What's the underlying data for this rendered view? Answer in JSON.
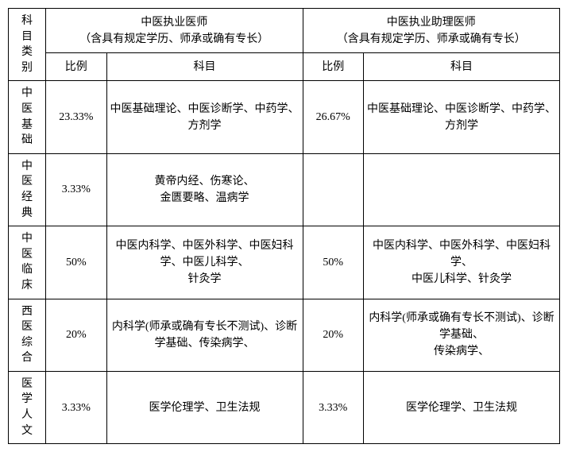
{
  "header": {
    "category_label": "科目类别",
    "group1_title": "中医执业医师\n（含具有规定学历、师承或确有专长）",
    "group2_title": "中医执业助理医师\n（含具有规定学历、师承或确有专长）",
    "ratio_label": "比例",
    "subject_label": "科目"
  },
  "rows": [
    {
      "category": "中医基础",
      "g1_ratio": "23.33%",
      "g1_subject": "中医基础理论、中医诊断学、中药学、方剂学",
      "g2_ratio": "26.67%",
      "g2_subject": "中医基础理论、中医诊断学、中药学、方剂学"
    },
    {
      "category": "中医经典",
      "g1_ratio": "3.33%",
      "g1_subject": "黄帝内经、伤寒论、\n金匮要略、温病学",
      "g2_ratio": "",
      "g2_subject": ""
    },
    {
      "category": "中医临床",
      "g1_ratio": "50%",
      "g1_subject": "中医内科学、中医外科学、中医妇科学、中医儿科学、\n针灸学",
      "g2_ratio": "50%",
      "g2_subject": "中医内科学、中医外科学、中医妇科学、\n中医儿科学、针灸学"
    },
    {
      "category": "西医综合",
      "g1_ratio": "20%",
      "g1_subject": "内科学(师承或确有专长不测试)、诊断学基础、传染病学、",
      "g2_ratio": "20%",
      "g2_subject": "内科学(师承或确有专长不测试)、诊断学基础、\n传染病学、"
    },
    {
      "category": "医学人文",
      "g1_ratio": "3.33%",
      "g1_subject": "医学伦理学、卫生法规",
      "g2_ratio": "3.33%",
      "g2_subject": "医学伦理学、卫生法规"
    }
  ]
}
